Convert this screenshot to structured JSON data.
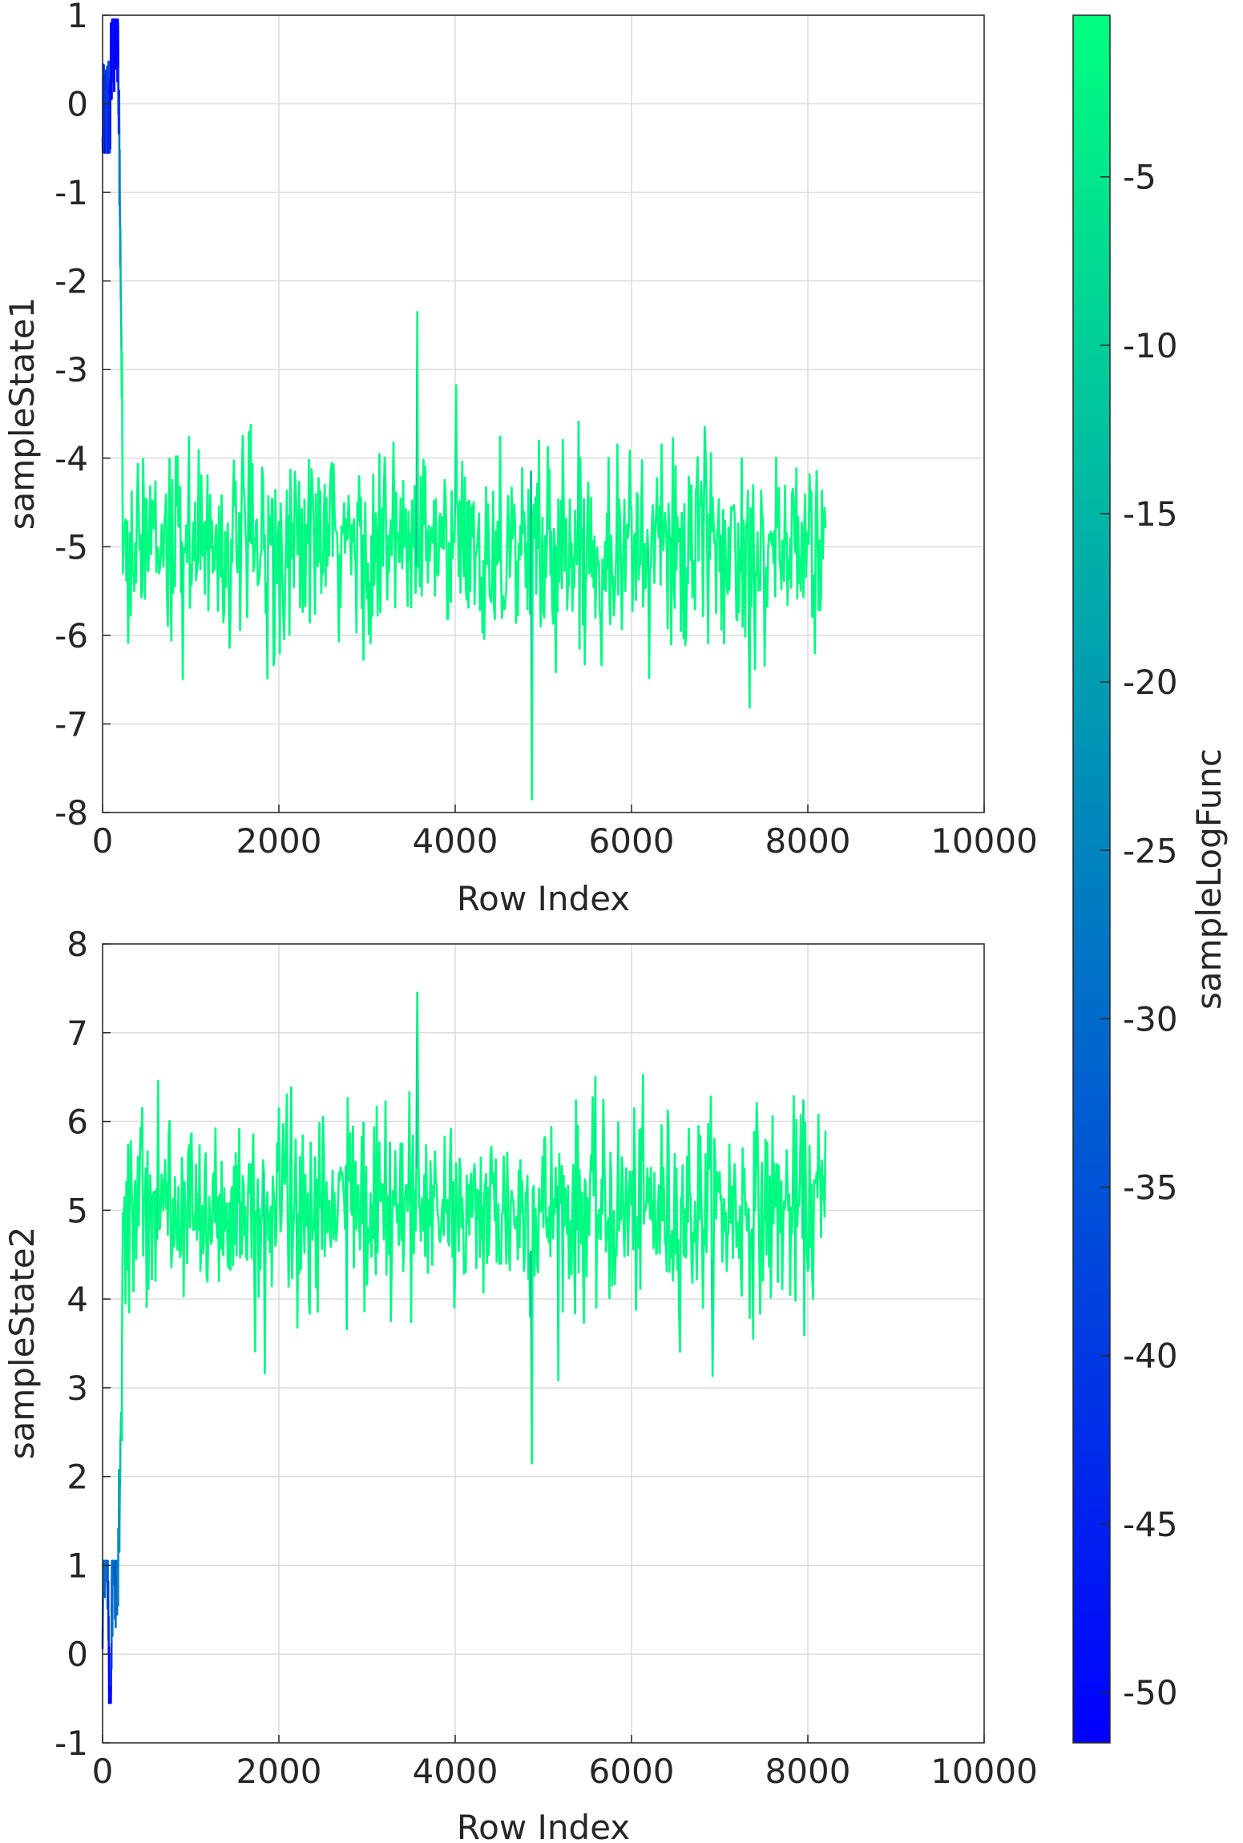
{
  "chart_data": [
    {
      "type": "line",
      "title": "",
      "xlabel": "Row Index",
      "ylabel": "sampleState1",
      "xlim": [
        0,
        10000
      ],
      "ylim": [
        -8,
        1
      ],
      "xticks": [
        0,
        2000,
        4000,
        6000,
        8000,
        10000
      ],
      "yticks": [
        1,
        0,
        -1,
        -2,
        -3,
        -4,
        -5,
        -6,
        -7,
        -8
      ],
      "grid": true,
      "series": [
        {
          "color_by": "sampleLogFunc",
          "n_points": 8200,
          "burn_in": {
            "x_end": 220,
            "start_y": 0.3,
            "y_range": [
              -0.55,
              0.95
            ],
            "end_y": -3.5
          },
          "stationary": {
            "x_range": [
              220,
              8200
            ],
            "mean": -5.0,
            "min": -7.85,
            "max": -2.35
          }
        }
      ]
    },
    {
      "type": "line",
      "title": "",
      "xlabel": "Row Index",
      "ylabel": "sampleState2",
      "xlim": [
        0,
        10000
      ],
      "ylim": [
        -1,
        8
      ],
      "xticks": [
        0,
        2000,
        4000,
        6000,
        8000,
        10000
      ],
      "yticks": [
        8,
        7,
        6,
        5,
        4,
        3,
        2,
        1,
        0,
        -1
      ],
      "grid": true,
      "series": [
        {
          "color_by": "sampleLogFunc",
          "n_points": 8200,
          "burn_in": {
            "x_end": 220,
            "start_y": 0.3,
            "y_range": [
              -0.55,
              1.05
            ],
            "end_y": 3.2
          },
          "stationary": {
            "x_range": [
              220,
              8200
            ],
            "mean": 5.0,
            "min": 2.15,
            "max": 7.45
          }
        }
      ]
    }
  ],
  "colorbar": {
    "label": "sampleLogFunc",
    "range": [
      -51.5,
      -0.2
    ],
    "ticks": [
      -5,
      -10,
      -15,
      -20,
      -25,
      -30,
      -35,
      -40,
      -45,
      -50
    ],
    "colormap": "winter",
    "color_low": "#0000ff",
    "color_high": "#00ff80"
  }
}
